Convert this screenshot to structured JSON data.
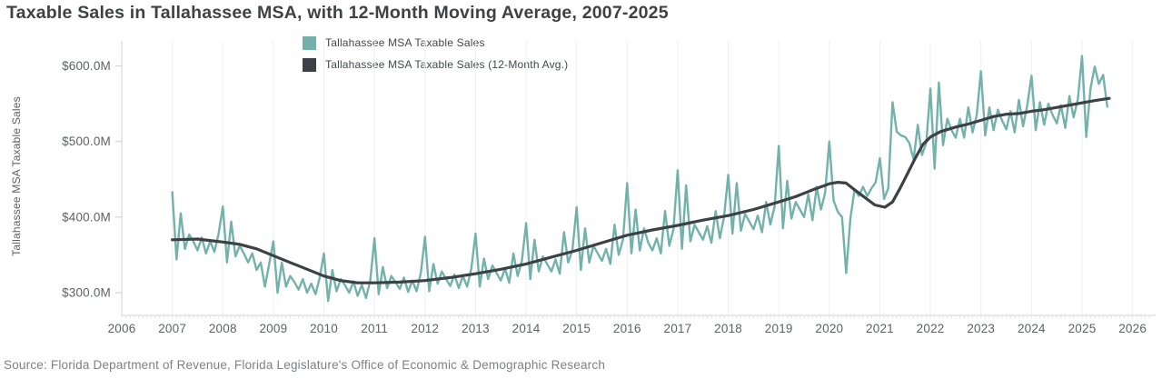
{
  "chart": {
    "title": "Taxable Sales in Tallahassee MSA, with 12-Month Moving Average, 2007-2025",
    "source": "Source: Florida Department of Revenue, Florida Legislature's Office of Economic & Demographic Research",
    "chart_data": {
      "type": "line",
      "title": "Taxable Sales in Tallahassee MSA, with 12-Month Moving Average, 2007-2025",
      "xlabel": "",
      "ylabel": "Tallahassee MSA Taxable Sales",
      "unit": "USD millions",
      "grid": "vertical-years-only",
      "legend_position": "top-inside-left",
      "xlim": [
        2006,
        2026.42
      ],
      "ylim": [
        270,
        633
      ],
      "x_ticks": [
        2006,
        2007,
        2008,
        2009,
        2010,
        2011,
        2012,
        2013,
        2014,
        2015,
        2016,
        2017,
        2018,
        2019,
        2020,
        2021,
        2022,
        2023,
        2024,
        2025,
        2026
      ],
      "y_ticks": [
        {
          "value": 600,
          "label": "$600.0M"
        },
        {
          "value": 500,
          "label": "$500.0M"
        },
        {
          "value": 400,
          "label": "$400.0M"
        },
        {
          "value": 300,
          "label": "$300.0M"
        }
      ],
      "series": [
        {
          "name": "Tallahassee MSA Taxable Sales",
          "color": "#73b2ab",
          "line_width": 2.4,
          "interval": "monthly",
          "start_year": 2007,
          "start_month": 1,
          "values": [
            433,
            344,
            405,
            358,
            377,
            368,
            356,
            373,
            352,
            368,
            354,
            378,
            414,
            340,
            394,
            348,
            362,
            352,
            340,
            352,
            330,
            340,
            308,
            338,
            368,
            300,
            340,
            308,
            322,
            314,
            304,
            318,
            300,
            312,
            298,
            320,
            352,
            289,
            330,
            302,
            318,
            310,
            300,
            315,
            296,
            310,
            293,
            316,
            372,
            298,
            334,
            306,
            322,
            314,
            305,
            320,
            301,
            316,
            302,
            326,
            374,
            302,
            338,
            312,
            328,
            318,
            309,
            324,
            306,
            322,
            308,
            332,
            378,
            308,
            345,
            318,
            336,
            326,
            316,
            332,
            313,
            352,
            322,
            342,
            392,
            318,
            370,
            328,
            348,
            338,
            328,
            344,
            325,
            380,
            340,
            356,
            413,
            330,
            385,
            340,
            362,
            352,
            342,
            358,
            338,
            390,
            350,
            370,
            445,
            352,
            410,
            356,
            385,
            366,
            356,
            372,
            352,
            408,
            362,
            384,
            462,
            358,
            442,
            368,
            390,
            380,
            370,
            388,
            366,
            408,
            372,
            400,
            456,
            378,
            445,
            382,
            404,
            394,
            384,
            402,
            380,
            420,
            390,
            414,
            494,
            385,
            448,
            398,
            420,
            410,
            400,
            430,
            396,
            440,
            410,
            432,
            500,
            422,
            407,
            400,
            326,
            398,
            437,
            428,
            440,
            428,
            438,
            446,
            478,
            424,
            438,
            552,
            513,
            508,
            506,
            498,
            476,
            522,
            482,
            498,
            570,
            464,
            578,
            495,
            530,
            515,
            505,
            530,
            505,
            545,
            512,
            535,
            593,
            508,
            545,
            515,
            542,
            528,
            516,
            540,
            512,
            555,
            520,
            548,
            587,
            515,
            552,
            522,
            550,
            535,
            524,
            548,
            518,
            560,
            532,
            556,
            613,
            506,
            570,
            599,
            576,
            588,
            546
          ]
        },
        {
          "name": "Tallahassee MSA Taxable Sales (12-Month Avg.)",
          "color": "#3c4145",
          "line_width": 3.2,
          "interval": "anchor-points",
          "points": [
            [
              2007.0,
              370
            ],
            [
              2007.5,
              371
            ],
            [
              2008.0,
              367
            ],
            [
              2008.33,
              364
            ],
            [
              2008.67,
              358
            ],
            [
              2009.0,
              349
            ],
            [
              2009.33,
              340
            ],
            [
              2009.67,
              331
            ],
            [
              2010.0,
              322
            ],
            [
              2010.33,
              316
            ],
            [
              2010.67,
              313
            ],
            [
              2011.0,
              313
            ],
            [
              2011.5,
              314
            ],
            [
              2012.0,
              316
            ],
            [
              2012.5,
              320
            ],
            [
              2013.0,
              325
            ],
            [
              2013.5,
              331
            ],
            [
              2014.0,
              338
            ],
            [
              2014.5,
              347
            ],
            [
              2015.0,
              356
            ],
            [
              2015.5,
              366
            ],
            [
              2016.0,
              376
            ],
            [
              2016.5,
              383
            ],
            [
              2017.0,
              389
            ],
            [
              2017.5,
              396
            ],
            [
              2018.0,
              402
            ],
            [
              2018.5,
              410
            ],
            [
              2019.0,
              420
            ],
            [
              2019.33,
              427
            ],
            [
              2019.67,
              436
            ],
            [
              2020.0,
              444
            ],
            [
              2020.17,
              446
            ],
            [
              2020.33,
              445
            ],
            [
              2020.5,
              436
            ],
            [
              2020.7,
              426
            ],
            [
              2020.9,
              416
            ],
            [
              2021.1,
              413
            ],
            [
              2021.25,
              420
            ],
            [
              2021.4,
              438
            ],
            [
              2021.55,
              458
            ],
            [
              2021.7,
              478
            ],
            [
              2021.85,
              496
            ],
            [
              2022.0,
              506
            ],
            [
              2022.2,
              513
            ],
            [
              2022.5,
              519
            ],
            [
              2022.75,
              523
            ],
            [
              2023.0,
              528
            ],
            [
              2023.25,
              533
            ],
            [
              2023.5,
              536
            ],
            [
              2023.75,
              537
            ],
            [
              2024.0,
              540
            ],
            [
              2024.25,
              542
            ],
            [
              2024.5,
              545
            ],
            [
              2024.75,
              548
            ],
            [
              2025.0,
              551
            ],
            [
              2025.25,
              554
            ],
            [
              2025.54,
              557
            ]
          ]
        }
      ]
    },
    "colors": {
      "background": "#ffffff",
      "title_text": "#3d4245",
      "tick_text": "#5d6266",
      "gridline": "#efeff0",
      "axis_line": "#d9dbdd",
      "tick_mark": "#d2d4d6",
      "minor_tick": "#e3e4e6",
      "series_teal": "#73b2ab",
      "series_dark": "#3c4145"
    }
  }
}
